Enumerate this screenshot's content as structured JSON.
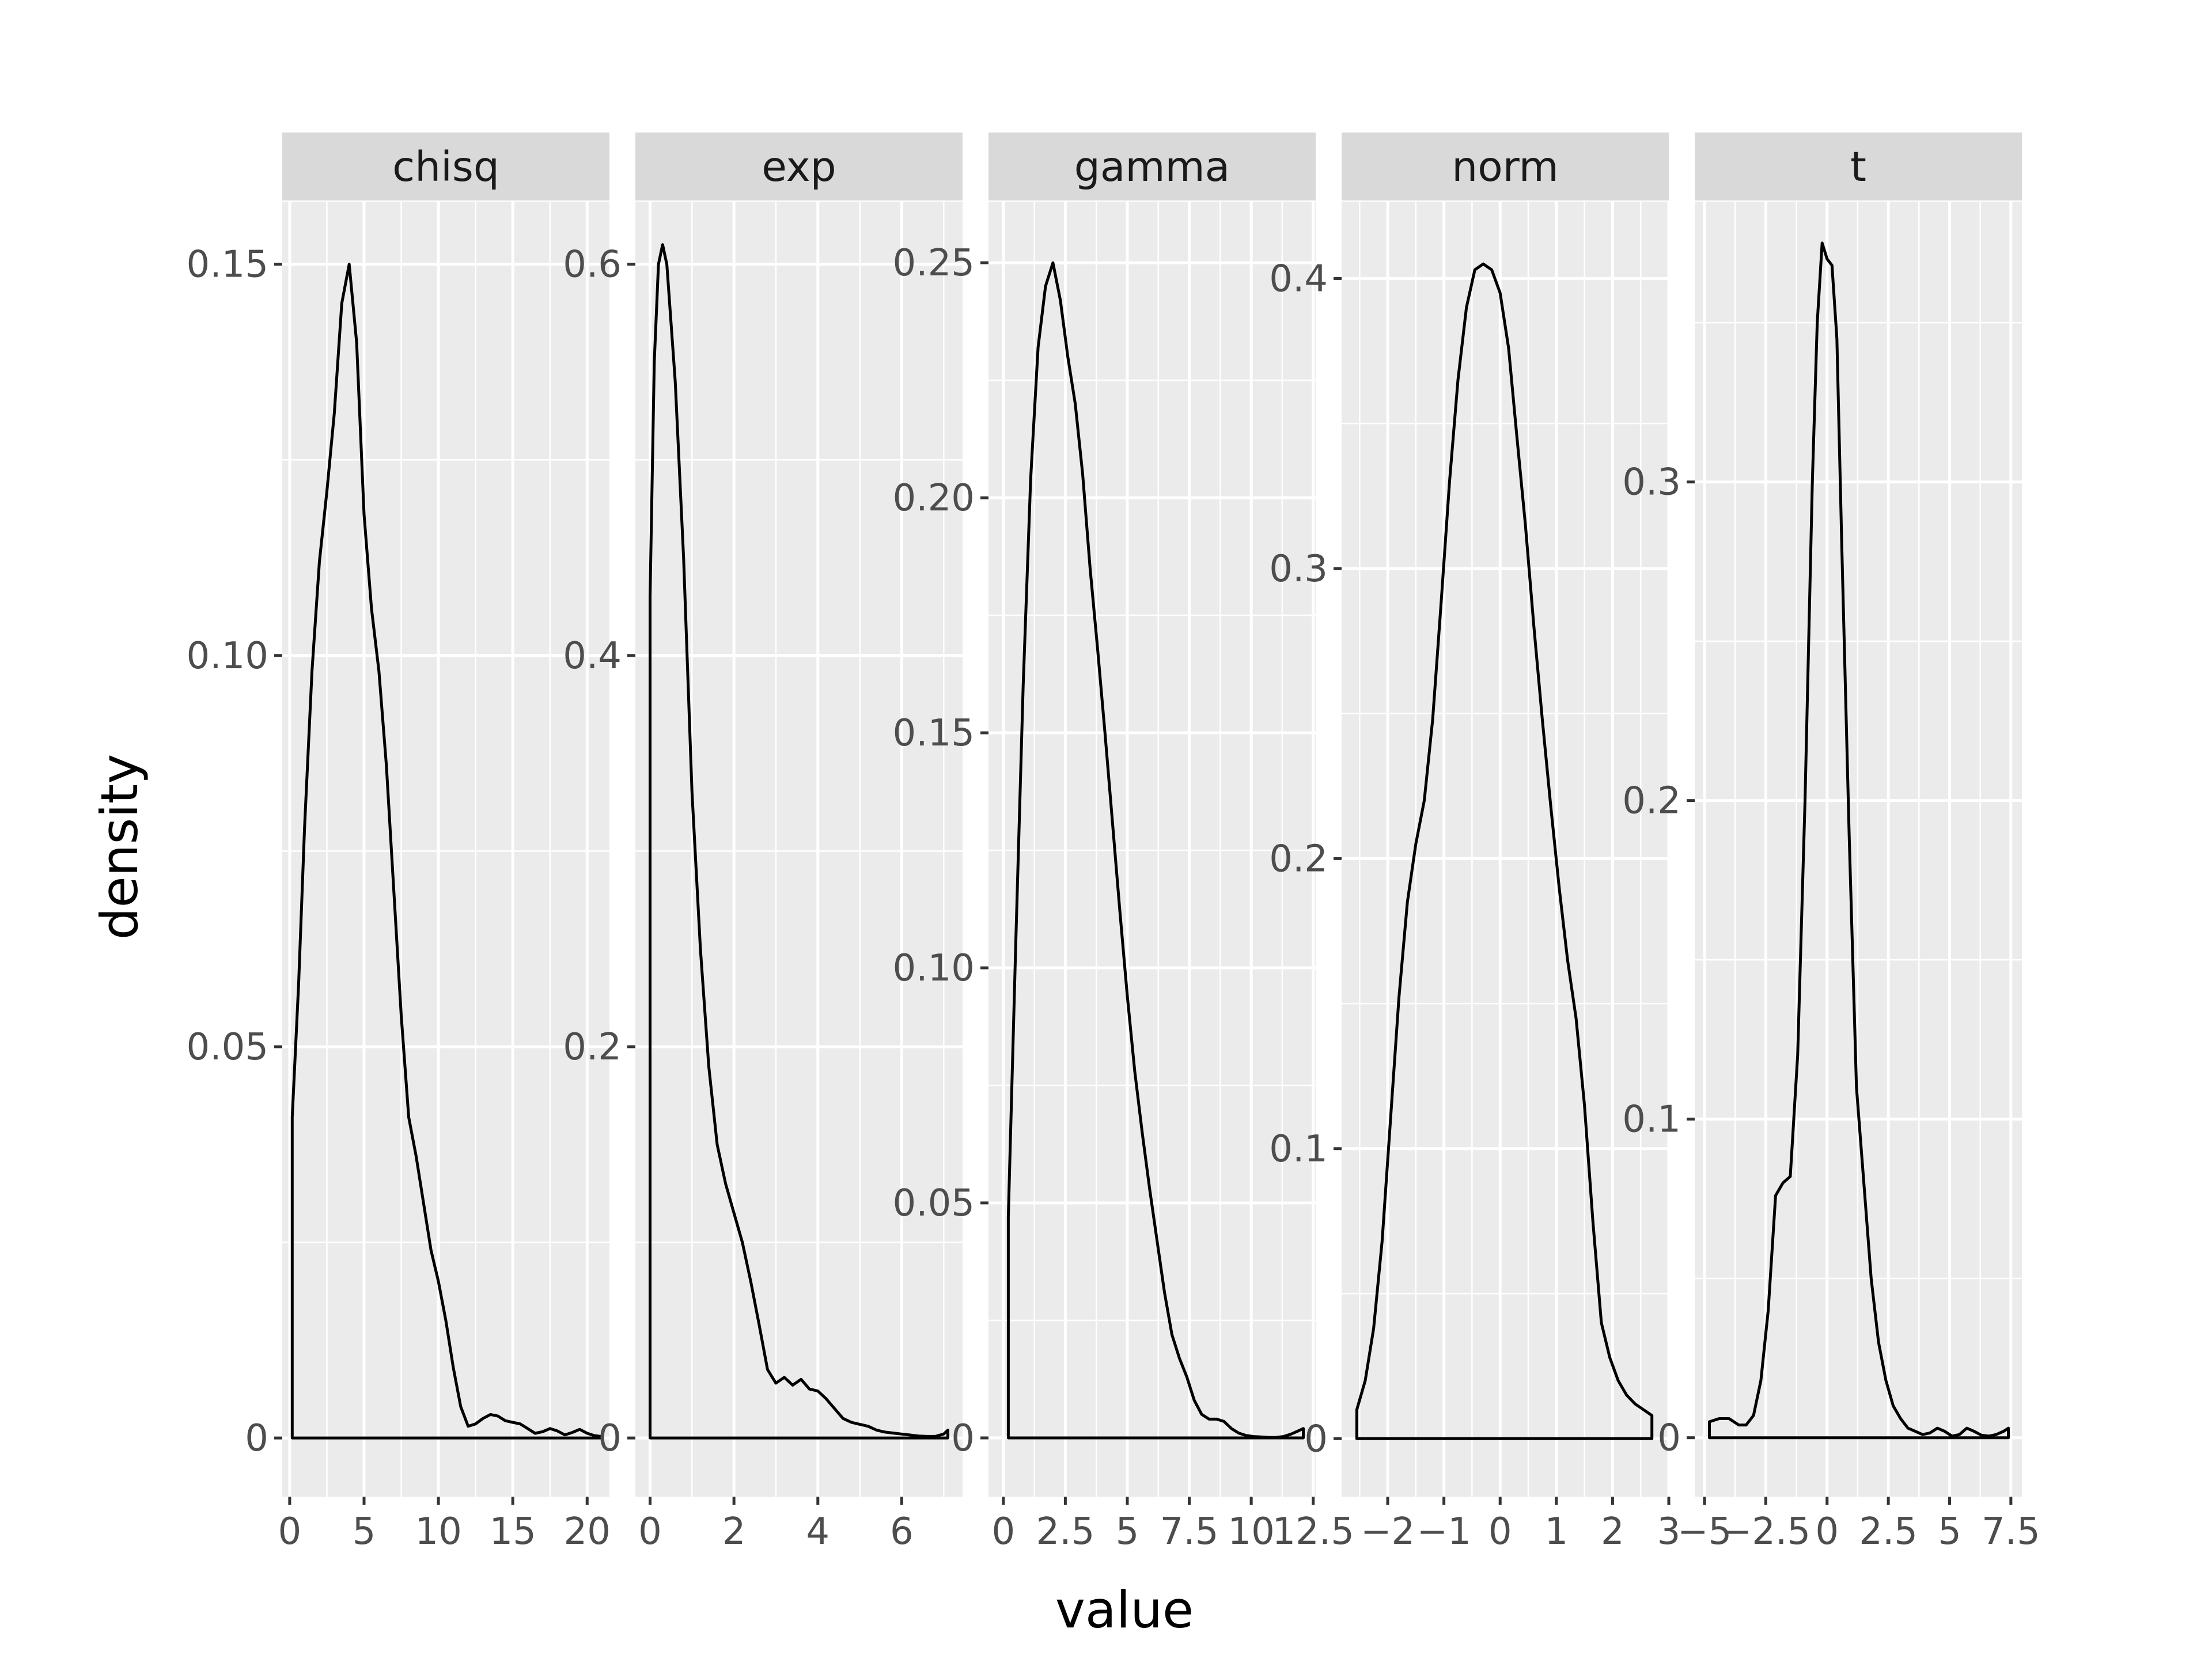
{
  "chart_data": {
    "type": "line",
    "subtype": "faceted-density",
    "xlabel": "value",
    "ylabel": "density",
    "grid": true,
    "legend": "none",
    "colors": {
      "line": "#000000",
      "panel_background": "#ebebeb",
      "strip_background": "#d9d9d9",
      "grid": "#ffffff"
    },
    "panels": [
      {
        "name": "chisq",
        "xlim": [
          -0.5,
          21.5
        ],
        "ylim": [
          -0.0075,
          0.158
        ],
        "x_ticks": [
          0,
          5,
          10,
          15,
          20
        ],
        "x_tick_labels": [
          "0",
          "5",
          "10",
          "15",
          "20"
        ],
        "y_ticks": [
          0,
          0.05,
          0.1,
          0.15
        ],
        "y_tick_labels": [
          "0",
          "0.05",
          "0.10",
          "0.15"
        ],
        "x": [
          0.17,
          0.6,
          1.0,
          1.5,
          2.0,
          2.5,
          3.0,
          3.5,
          4.0,
          4.5,
          5.0,
          5.5,
          6.0,
          6.5,
          7.0,
          7.5,
          8.0,
          8.5,
          9.0,
          9.5,
          10.0,
          10.5,
          11.0,
          11.5,
          12.0,
          12.5,
          13.0,
          13.5,
          14.0,
          14.5,
          15.0,
          15.5,
          16.0,
          16.5,
          17.0,
          17.5,
          18.0,
          18.5,
          19.0,
          19.5,
          20.0,
          20.5,
          20.9
        ],
        "y": [
          0.041,
          0.058,
          0.078,
          0.098,
          0.112,
          0.121,
          0.131,
          0.145,
          0.15,
          0.14,
          0.118,
          0.106,
          0.098,
          0.086,
          0.07,
          0.054,
          0.041,
          0.036,
          0.03,
          0.024,
          0.02,
          0.015,
          0.009,
          0.004,
          0.0015,
          0.0018,
          0.0025,
          0.003,
          0.0028,
          0.0022,
          0.002,
          0.0018,
          0.0012,
          0.0006,
          0.0008,
          0.0012,
          0.0009,
          0.0004,
          0.0007,
          0.0011,
          0.0006,
          0.0003,
          0.0002
        ]
      },
      {
        "name": "exp",
        "xlim": [
          -0.35,
          7.45
        ],
        "ylim": [
          -0.03,
          0.632
        ],
        "x_ticks": [
          0,
          2,
          4,
          6
        ],
        "x_tick_labels": [
          "0",
          "2",
          "4",
          "6"
        ],
        "y_ticks": [
          0,
          0.2,
          0.4,
          0.6
        ],
        "y_tick_labels": [
          "0",
          "0.2",
          "0.4",
          "0.6"
        ],
        "x": [
          0.0,
          0.1,
          0.2,
          0.3,
          0.4,
          0.5,
          0.6,
          0.8,
          1.0,
          1.2,
          1.4,
          1.6,
          1.8,
          2.0,
          2.2,
          2.4,
          2.6,
          2.8,
          3.0,
          3.2,
          3.4,
          3.6,
          3.8,
          4.0,
          4.2,
          4.4,
          4.6,
          4.8,
          5.0,
          5.2,
          5.4,
          5.6,
          5.8,
          6.0,
          6.2,
          6.4,
          6.6,
          6.8,
          7.0,
          7.1
        ],
        "y": [
          0.43,
          0.55,
          0.6,
          0.61,
          0.6,
          0.57,
          0.54,
          0.45,
          0.33,
          0.25,
          0.19,
          0.15,
          0.13,
          0.115,
          0.1,
          0.08,
          0.058,
          0.035,
          0.028,
          0.031,
          0.027,
          0.03,
          0.025,
          0.024,
          0.02,
          0.015,
          0.01,
          0.008,
          0.007,
          0.006,
          0.004,
          0.003,
          0.0025,
          0.002,
          0.0015,
          0.001,
          0.0008,
          0.0008,
          0.002,
          0.004
        ]
      },
      {
        "name": "gamma",
        "xlim": [
          -0.6,
          12.6
        ],
        "ylim": [
          -0.0125,
          0.263
        ],
        "x_ticks": [
          0,
          2.5,
          5,
          7.5,
          10,
          12.5
        ],
        "x_tick_labels": [
          "0",
          "2.5",
          "5",
          "7.5",
          "10",
          "12.5"
        ],
        "y_ticks": [
          0,
          0.05,
          0.1,
          0.15,
          0.2,
          0.25
        ],
        "y_tick_labels": [
          "0",
          "0.05",
          "0.10",
          "0.15",
          "0.20",
          "0.25"
        ],
        "x": [
          0.2,
          0.5,
          0.8,
          1.1,
          1.4,
          1.7,
          2.0,
          2.3,
          2.6,
          2.9,
          3.2,
          3.5,
          3.8,
          4.1,
          4.4,
          4.7,
          5.0,
          5.3,
          5.6,
          5.9,
          6.2,
          6.5,
          6.8,
          7.1,
          7.4,
          7.7,
          8.0,
          8.3,
          8.6,
          8.9,
          9.2,
          9.5,
          9.8,
          10.1,
          10.4,
          10.7,
          11.0,
          11.3,
          11.6,
          11.9,
          12.1
        ],
        "y": [
          0.047,
          0.105,
          0.16,
          0.204,
          0.232,
          0.245,
          0.25,
          0.242,
          0.23,
          0.22,
          0.205,
          0.185,
          0.168,
          0.15,
          0.131,
          0.112,
          0.094,
          0.078,
          0.065,
          0.053,
          0.042,
          0.031,
          0.022,
          0.017,
          0.013,
          0.008,
          0.005,
          0.004,
          0.004,
          0.0035,
          0.002,
          0.001,
          0.0005,
          0.0003,
          0.0002,
          0.0001,
          0.0001,
          0.0003,
          0.0008,
          0.0015,
          0.002
        ]
      },
      {
        "name": "norm",
        "xlim": [
          -2.82,
          3.0
        ],
        "ylim": [
          -0.02,
          0.4265
        ],
        "x_ticks": [
          -2,
          -1,
          0,
          1,
          2,
          3
        ],
        "x_tick_labels": [
          "−2",
          "−1",
          "0",
          "1",
          "2",
          "3"
        ],
        "y_ticks": [
          0,
          0.1,
          0.2,
          0.3,
          0.4
        ],
        "y_tick_labels": [
          "0",
          "0.1",
          "0.2",
          "0.3",
          "0.4"
        ],
        "x": [
          -2.55,
          -2.4,
          -2.25,
          -2.1,
          -1.95,
          -1.8,
          -1.65,
          -1.5,
          -1.35,
          -1.2,
          -1.05,
          -0.9,
          -0.75,
          -0.6,
          -0.45,
          -0.3,
          -0.15,
          0.0,
          0.15,
          0.3,
          0.45,
          0.6,
          0.75,
          0.9,
          1.05,
          1.2,
          1.35,
          1.5,
          1.65,
          1.8,
          1.95,
          2.1,
          2.25,
          2.4,
          2.55,
          2.7
        ],
        "y": [
          0.01,
          0.02,
          0.038,
          0.068,
          0.11,
          0.152,
          0.185,
          0.205,
          0.22,
          0.248,
          0.288,
          0.33,
          0.365,
          0.39,
          0.403,
          0.405,
          0.403,
          0.395,
          0.376,
          0.345,
          0.315,
          0.28,
          0.248,
          0.218,
          0.19,
          0.165,
          0.145,
          0.115,
          0.075,
          0.04,
          0.028,
          0.02,
          0.015,
          0.012,
          0.01,
          0.008
        ]
      },
      {
        "name": "t",
        "xlim": [
          -5.4,
          7.95
        ],
        "ylim": [
          -0.0185,
          0.388
        ],
        "x_ticks": [
          -5,
          -2.5,
          0,
          2.5,
          5,
          7.5
        ],
        "x_tick_labels": [
          "−5",
          "−2.5",
          "0",
          "2.5",
          "5",
          "7.5"
        ],
        "y_ticks": [
          0.1,
          0.2,
          0.3
        ],
        "y_tick_labels": [
          "0.1",
          "0.2",
          "0.3"
        ],
        "zero_tick": true,
        "zero_tick_label": "0",
        "x": [
          -4.8,
          -4.4,
          -4.0,
          -3.6,
          -3.3,
          -3.0,
          -2.7,
          -2.4,
          -2.1,
          -1.8,
          -1.5,
          -1.2,
          -0.9,
          -0.6,
          -0.4,
          -0.2,
          0.0,
          0.2,
          0.4,
          0.6,
          0.9,
          1.2,
          1.5,
          1.8,
          2.1,
          2.4,
          2.7,
          3.0,
          3.3,
          3.6,
          3.9,
          4.2,
          4.5,
          4.8,
          5.1,
          5.4,
          5.7,
          6.0,
          6.3,
          6.6,
          6.9,
          7.2,
          7.4
        ],
        "y": [
          0.005,
          0.006,
          0.006,
          0.004,
          0.004,
          0.007,
          0.018,
          0.04,
          0.076,
          0.08,
          0.082,
          0.12,
          0.2,
          0.3,
          0.35,
          0.375,
          0.37,
          0.368,
          0.345,
          0.28,
          0.19,
          0.11,
          0.08,
          0.05,
          0.03,
          0.018,
          0.01,
          0.006,
          0.003,
          0.002,
          0.001,
          0.0015,
          0.003,
          0.002,
          0.0005,
          0.001,
          0.003,
          0.002,
          0.0008,
          0.0005,
          0.001,
          0.002,
          0.003
        ]
      }
    ]
  }
}
